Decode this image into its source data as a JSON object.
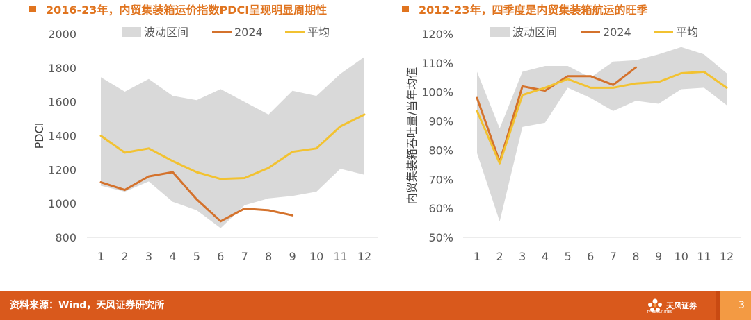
{
  "colors": {
    "title": "#e0741f",
    "bullet": "#e0741f",
    "band": "#d9d9d9",
    "line_2024": "#d4722c",
    "line_avg": "#f2c231",
    "axis_text": "#595959",
    "footer_bg": "#d9591c",
    "footer_accent": "#f39a43"
  },
  "charts": {
    "left_title": "2016-23年，内贸集装箱运价指数PDCI呈现明显周期性",
    "right_title": "2012-23年，四季度是内贸集装箱航运的旺季"
  },
  "chart_data": [
    {
      "type": "line",
      "title": "2016-23年，内贸集装箱运价指数PDCI呈现明显周期性",
      "xlabel": "",
      "ylabel": "PDCI",
      "categories": [
        "1",
        "2",
        "3",
        "4",
        "5",
        "6",
        "7",
        "8",
        "9",
        "10",
        "11",
        "12"
      ],
      "ylim": [
        800,
        2000
      ],
      "yticks": [
        "800",
        "1000",
        "1200",
        "1400",
        "1600",
        "1800",
        "2000"
      ],
      "legend_position": "top",
      "band": {
        "name": "波动区间",
        "upper": [
          1745,
          1660,
          1735,
          1635,
          1610,
          1675,
          1600,
          1525,
          1665,
          1635,
          1765,
          1865
        ],
        "lower": [
          1105,
          1070,
          1130,
          1010,
          960,
          855,
          990,
          1030,
          1045,
          1070,
          1205,
          1170
        ]
      },
      "series": [
        {
          "name": "2024",
          "values": [
            1125,
            1080,
            1160,
            1185,
            1025,
            895,
            970,
            960,
            930,
            null,
            null,
            null
          ]
        },
        {
          "name": "平均",
          "values": [
            1400,
            1300,
            1325,
            1250,
            1185,
            1145,
            1150,
            1210,
            1305,
            1325,
            1455,
            1525
          ]
        }
      ],
      "legend": [
        "波动区间",
        "2024",
        "平均"
      ]
    },
    {
      "type": "line",
      "title": "2012-23年，四季度是内贸集装箱航运的旺季",
      "xlabel": "",
      "ylabel": "内贸集装箱吞吐量/当年均值",
      "categories": [
        "1",
        "2",
        "3",
        "4",
        "5",
        "6",
        "7",
        "8",
        "9",
        "10",
        "11",
        "12"
      ],
      "ylim": [
        50,
        120
      ],
      "yticks": [
        "50%",
        "60%",
        "70%",
        "80%",
        "90%",
        "100%",
        "110%",
        "120%"
      ],
      "legend_position": "top",
      "band": {
        "name": "波动区间",
        "upper": [
          107,
          87.5,
          107,
          109,
          109,
          105,
          110.5,
          111,
          113,
          115.5,
          113,
          106.5
        ],
        "lower": [
          79,
          55.5,
          88,
          89.5,
          101.5,
          98,
          93.5,
          97,
          96,
          101,
          101.5,
          95.5
        ]
      },
      "series": [
        {
          "name": "2024",
          "values": [
            98,
            76,
            102,
            100.5,
            105.5,
            105.5,
            102.5,
            108.5,
            null,
            null,
            null,
            null
          ]
        },
        {
          "name": "平均",
          "values": [
            93.5,
            75.5,
            99,
            101.5,
            104.5,
            101.5,
            101.5,
            103,
            103.5,
            106.5,
            107,
            101.5
          ]
        }
      ],
      "legend": [
        "波动区间",
        "2024",
        "平均"
      ]
    }
  ],
  "footer": {
    "source": "资料来源：Wind，天风证券研究所",
    "logo_text": "天风证券",
    "logo_sub": "TF SECURITIES",
    "page_number": "3"
  }
}
